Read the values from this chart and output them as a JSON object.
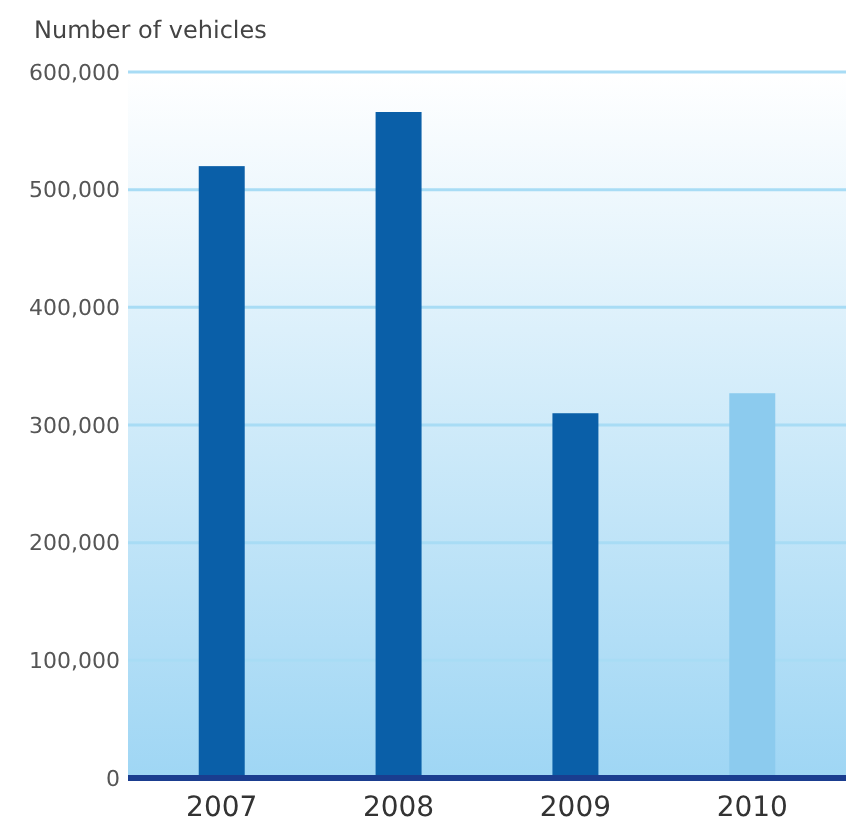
{
  "chart_data": {
    "type": "bar",
    "ylabel": "Number of vehicles",
    "categories": [
      "2007",
      "2008",
      "2009",
      "2010"
    ],
    "values": [
      520000,
      566000,
      310000,
      327000
    ],
    "colors": [
      "#0a5fa8",
      "#0a5fa8",
      "#0a5fa8",
      "#8ccbee"
    ],
    "ylim": [
      0,
      600000
    ],
    "yticks": [
      {
        "value": 0,
        "label": "0"
      },
      {
        "value": 100000,
        "label": "100,000"
      },
      {
        "value": 200000,
        "label": "200,000"
      },
      {
        "value": 300000,
        "label": "300,000"
      },
      {
        "value": 400000,
        "label": "400,000"
      },
      {
        "value": 500000,
        "label": "500,000"
      },
      {
        "value": 600000,
        "label": "600,000"
      }
    ],
    "grid": "y"
  }
}
